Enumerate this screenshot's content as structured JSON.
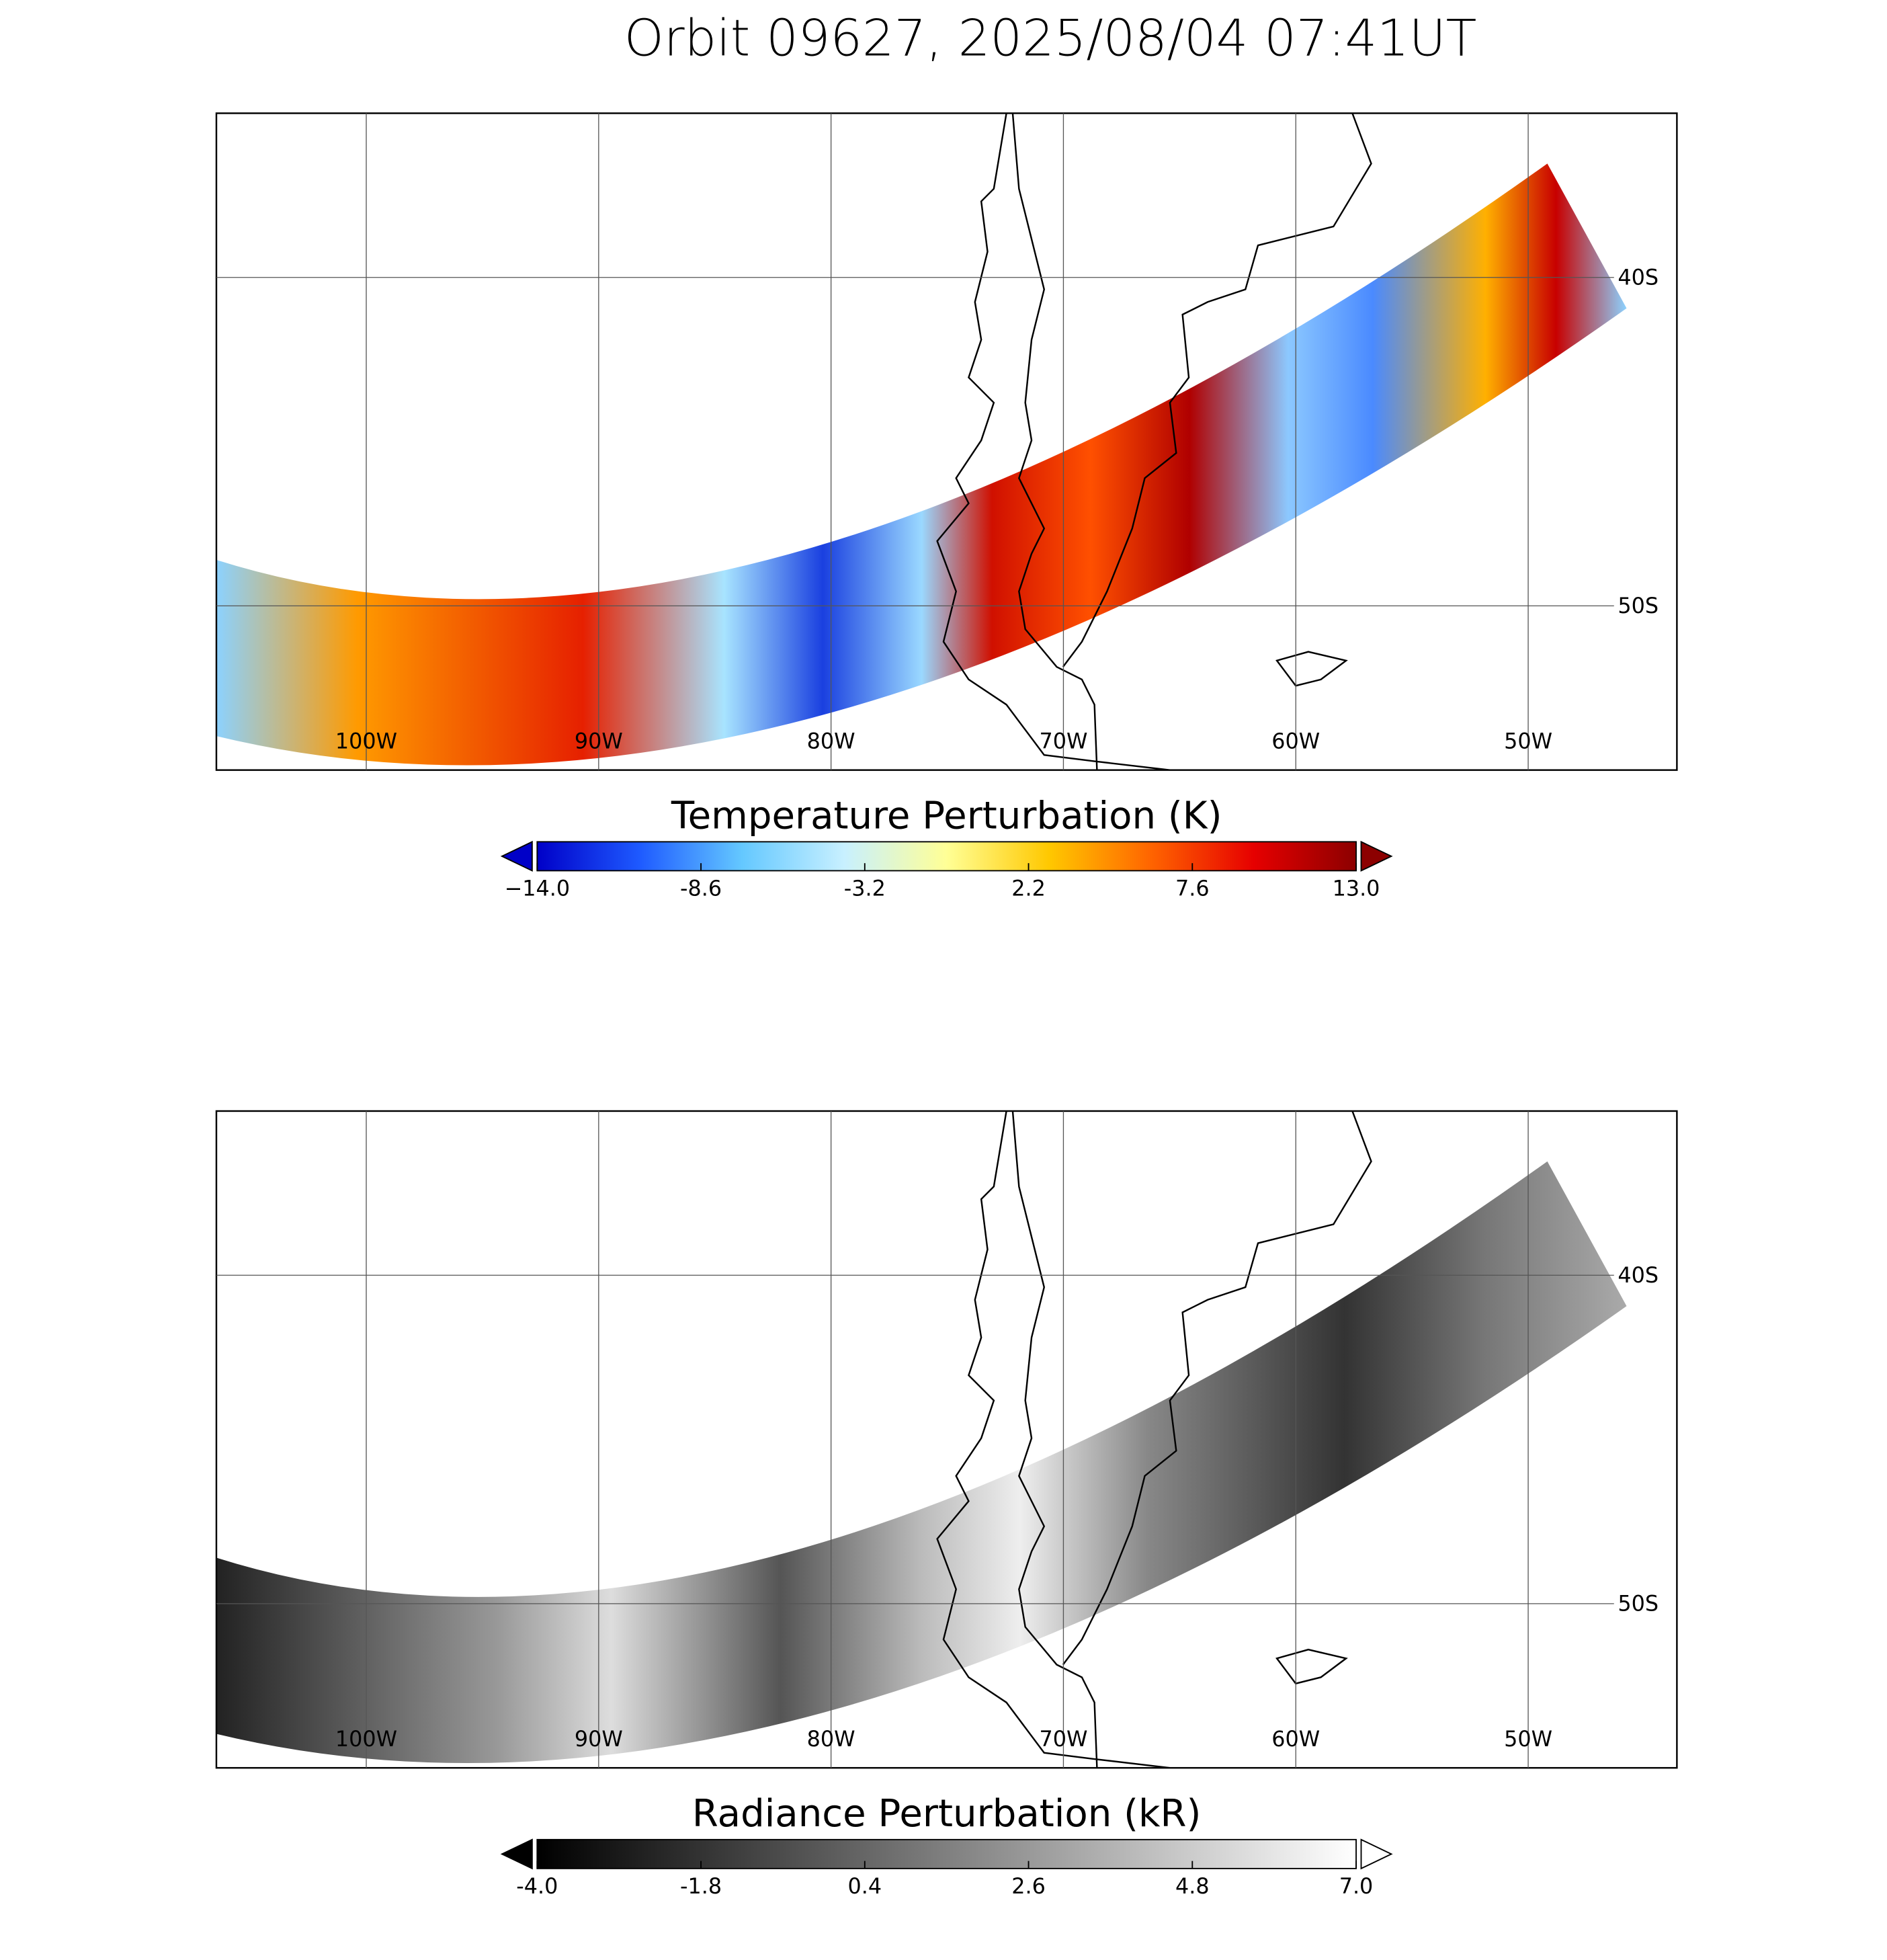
{
  "chart_data": [
    {
      "type": "map",
      "title": "Orbit 09627, 2025/08/04 07:41UT",
      "xlim": [
        -106.45,
        -43.6
      ],
      "ylim": [
        -55,
        -35
      ],
      "xticks": [
        {
          "value": -100,
          "label": "100W"
        },
        {
          "value": -90,
          "label": "90W"
        },
        {
          "value": -80,
          "label": "80W"
        },
        {
          "value": -70,
          "label": "70W"
        },
        {
          "value": -60,
          "label": "60W"
        },
        {
          "value": -50,
          "label": "50W"
        }
      ],
      "yticks": [
        {
          "value": -40,
          "label": "40S"
        },
        {
          "value": -50,
          "label": "50S"
        }
      ],
      "grid": true,
      "colorbar": {
        "title": "Temperature Perturbation (K)",
        "lim": [
          -14,
          13
        ],
        "ticks": [
          {
            "value": -14,
            "label": "−14.0"
          },
          -8.6,
          -3.2,
          2.2,
          7.6,
          {
            "value": 13,
            "label": "13.0"
          }
        ],
        "colormap": [
          "#0000c8",
          "#1e5aff",
          "#64c8ff",
          "#c8f0ff",
          "#ffff96",
          "#ffc800",
          "#ff6400",
          "#e60000",
          "#8c0000"
        ]
      }
    },
    {
      "type": "map",
      "xlim": [
        -106.45,
        -43.6
      ],
      "ylim": [
        -55,
        -35
      ],
      "xticks": [
        {
          "value": -100,
          "label": "100W"
        },
        {
          "value": -90,
          "label": "90W"
        },
        {
          "value": -80,
          "label": "80W"
        },
        {
          "value": -70,
          "label": "70W"
        },
        {
          "value": -60,
          "label": "60W"
        },
        {
          "value": -50,
          "label": "50W"
        }
      ],
      "yticks": [
        {
          "value": -40,
          "label": "40S"
        },
        {
          "value": -50,
          "label": "50S"
        }
      ],
      "grid": true,
      "colorbar": {
        "title": "Radiance Perturbation (kR)",
        "lim": [
          -4,
          7
        ],
        "ticks": [
          {
            "value": -4,
            "label": "-4.0"
          },
          -1.8,
          0.4,
          2.6,
          4.8,
          {
            "value": 7,
            "label": "7.0"
          }
        ],
        "colormap": [
          "#000000",
          "#ffffff"
        ]
      }
    }
  ]
}
